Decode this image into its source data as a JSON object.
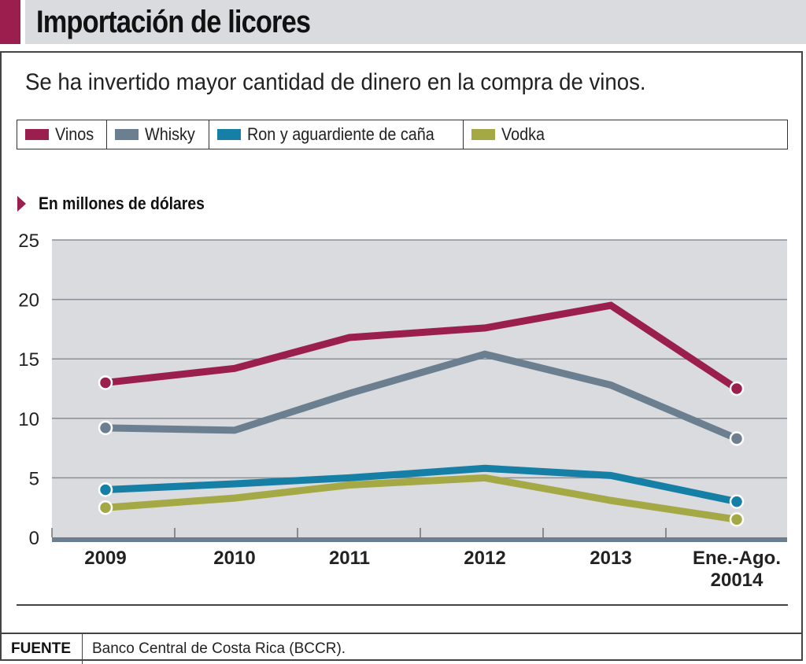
{
  "header": {
    "title": "Importación de licores",
    "accent_color": "#9b1f4e"
  },
  "subtitle": "Se ha invertido mayor cantidad de dinero en la compra de vinos.",
  "unit_label": "En millones de dólares",
  "footer": {
    "label": "FUENTE",
    "source": "Banco Central de Costa Rica (BCCR)."
  },
  "chart_data": {
    "type": "line",
    "title": "Importación de licores",
    "subtitle": "Se ha invertido mayor cantidad de dinero en la compra de vinos.",
    "ylabel": "En millones de dólares",
    "xlabel": "",
    "ylim": [
      0,
      25
    ],
    "yticks": [
      "0",
      "5",
      "10",
      "15",
      "20",
      "25"
    ],
    "grid": true,
    "legend": "top",
    "categories": [
      "2009",
      "2010",
      "2011",
      "2012",
      "2013",
      "Ene.-Ago. 20014"
    ],
    "category_lines": [
      [
        "2009"
      ],
      [
        "2010"
      ],
      [
        "2011"
      ],
      [
        "2012"
      ],
      [
        "2013"
      ],
      [
        "Ene.-Ago.",
        "20014"
      ]
    ],
    "series": [
      {
        "name": "Vinos",
        "color": "#9b1f4e",
        "values": [
          13.0,
          14.2,
          16.8,
          17.6,
          19.5,
          12.5
        ]
      },
      {
        "name": "Whisky",
        "color": "#6b7f91",
        "values": [
          9.2,
          9.0,
          12.1,
          15.4,
          12.8,
          8.3
        ]
      },
      {
        "name": "Ron y aguardiente de caña",
        "color": "#157fa6",
        "values": [
          4.0,
          4.5,
          5.0,
          5.8,
          5.2,
          3.0
        ]
      },
      {
        "name": "Vodka",
        "color": "#a5a945",
        "values": [
          2.5,
          3.3,
          4.4,
          5.0,
          3.1,
          1.5
        ]
      }
    ]
  }
}
